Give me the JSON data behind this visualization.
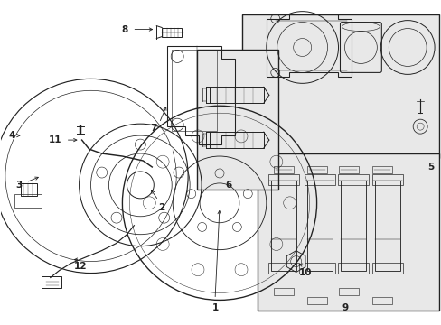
{
  "background_color": "#ffffff",
  "line_color": "#222222",
  "panel_fill": "#e8e8e8",
  "fig_width": 4.89,
  "fig_height": 3.6,
  "dpi": 100
}
